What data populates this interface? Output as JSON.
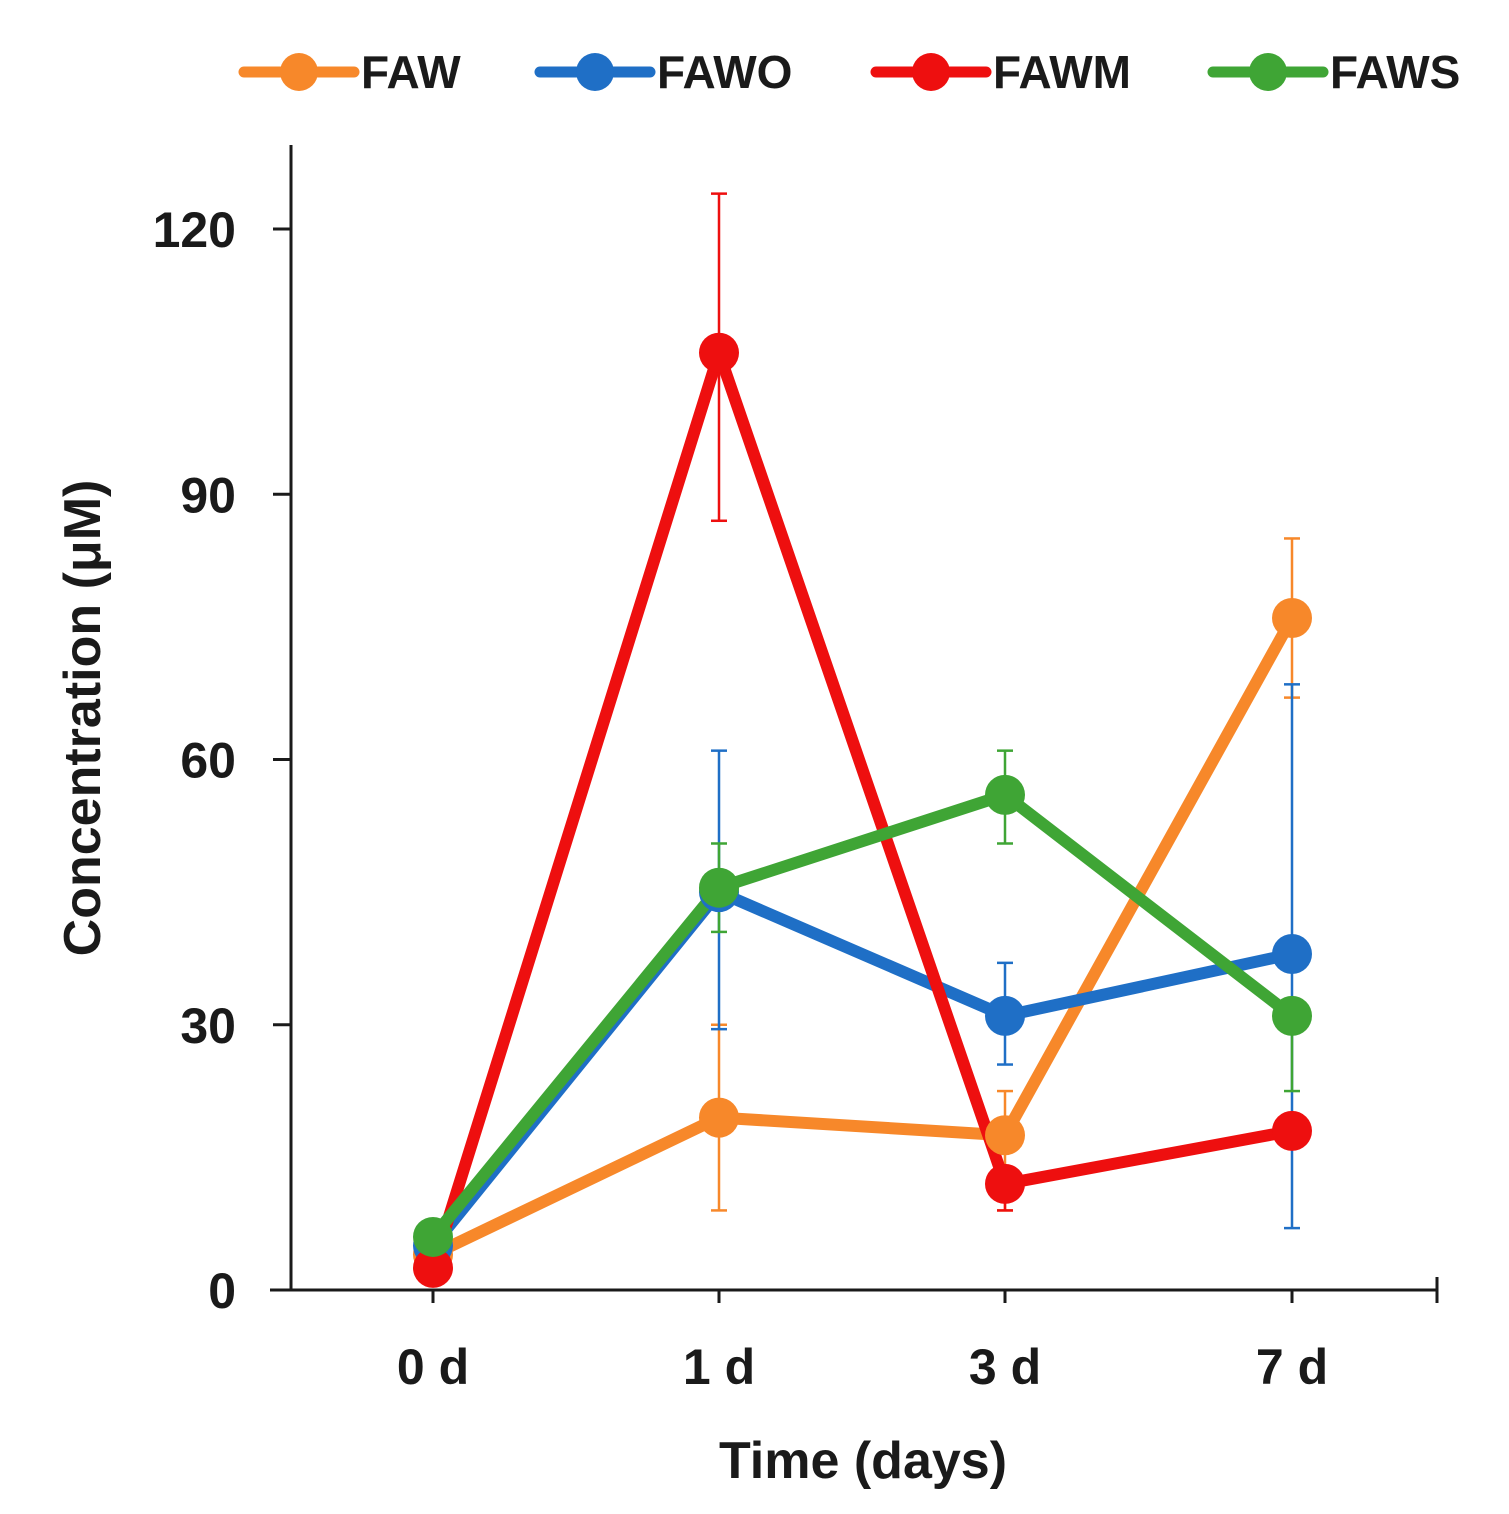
{
  "chart_data": {
    "type": "line",
    "title": "",
    "xlabel": "Time (days)",
    "ylabel": "Concentration (μM)",
    "categories": [
      "0 d",
      "1 d",
      "3 d",
      "7 d"
    ],
    "y_ticks": [
      0,
      30,
      60,
      90,
      120
    ],
    "ylim": [
      0,
      130
    ],
    "grid": false,
    "legend_position": "top",
    "series": [
      {
        "name": "FAW",
        "color": "#F7882A",
        "values": [
          4,
          19.5,
          17.5,
          76
        ],
        "err_upper": [
          4,
          30,
          22.5,
          85
        ],
        "err_lower": [
          4,
          9,
          9,
          67
        ]
      },
      {
        "name": "FAWO",
        "color": "#1F6FC6",
        "values": [
          5,
          45,
          31,
          38
        ],
        "err_upper": [
          5,
          61,
          37,
          68.5
        ],
        "err_lower": [
          5,
          29.5,
          25.5,
          7
        ]
      },
      {
        "name": "FAWM",
        "color": "#EE0F0F",
        "values": [
          2.5,
          106,
          12,
          18
        ],
        "err_upper": [
          2.5,
          124,
          12,
          18
        ],
        "err_lower": [
          2.5,
          87,
          9,
          18
        ]
      },
      {
        "name": "FAWS",
        "color": "#3FA535",
        "values": [
          6,
          45.5,
          56,
          31
        ],
        "err_upper": [
          6,
          50.5,
          61,
          31
        ],
        "err_lower": [
          6,
          40.5,
          50.5,
          22.5
        ]
      }
    ]
  }
}
